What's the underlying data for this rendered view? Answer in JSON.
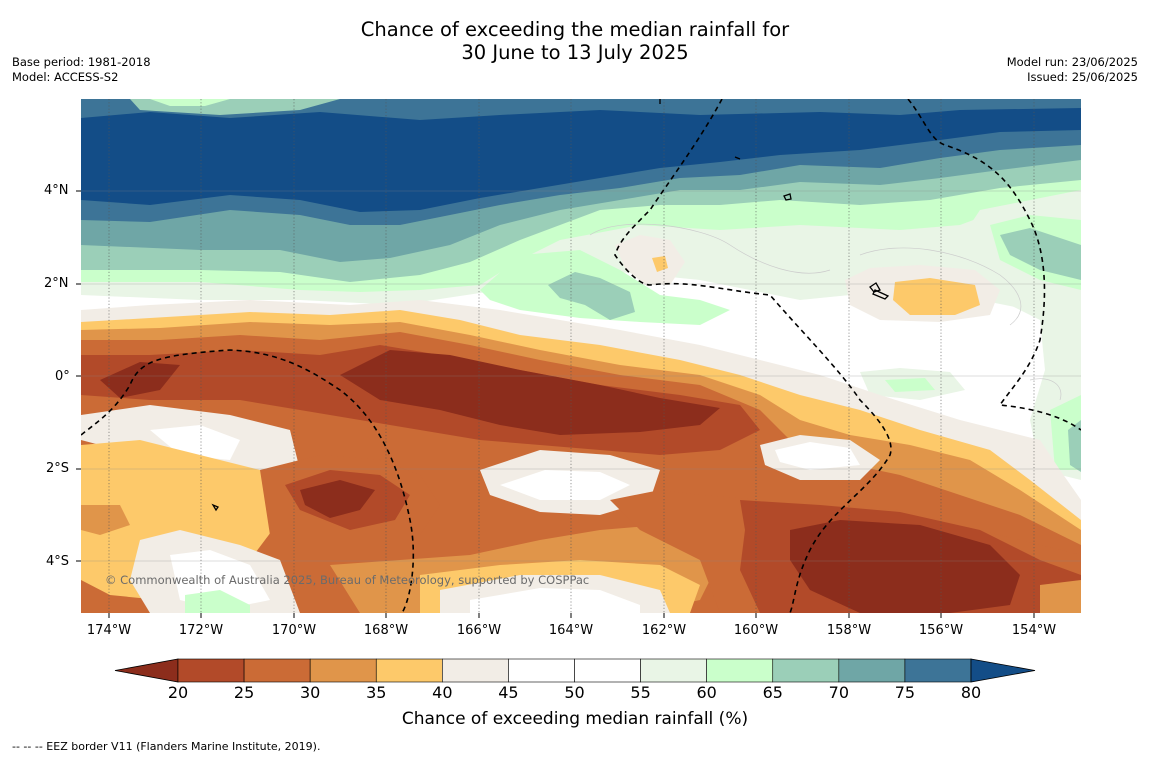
{
  "title_line1": "Chance of exceeding the median rainfall for",
  "title_line2": "30 June to 13 July 2025",
  "meta_left": [
    "Base period: 1981-2018",
    "Model: ACCESS-S2"
  ],
  "meta_right": [
    "Model run: 23/06/2025",
    "Issued: 25/06/2025"
  ],
  "copyright": "© Commonwealth of Australia 2025, Bureau of Meteorology, supported by COSPPac",
  "lat_labels": [
    "4°N",
    "2°N",
    "0°",
    "2°S",
    "4°S"
  ],
  "lon_labels": [
    "174°W",
    "172°W",
    "170°W",
    "168°W",
    "166°W",
    "164°W",
    "162°W",
    "160°W",
    "158°W",
    "156°W",
    "154°W"
  ],
  "colorbar": {
    "title": "Chance of exceeding median rainfall (%)",
    "ticks": [
      "20",
      "25",
      "30",
      "35",
      "40",
      "45",
      "50",
      "55",
      "60",
      "65",
      "70",
      "75",
      "80"
    ],
    "colors": [
      "#8c2d1c",
      "#b24a29",
      "#cb6b36",
      "#e0954a",
      "#fdc96a",
      "#f2ede6",
      "#ffffff",
      "#ffffff",
      "#e9f5e6",
      "#caffcb",
      "#9bcfb8",
      "#6fa6a6",
      "#3d7497",
      "#134d87"
    ]
  },
  "footnote": "--  --  -- EEZ border V11 (Flanders Marine Institute, 2019).",
  "map_colors": {
    "deep_blue": "#134d87",
    "blue": "#3d7497",
    "teal": "#6fa6a6",
    "seafoam": "#9bcfb8",
    "mint": "#caffcb",
    "pale_green": "#e9f5e6",
    "white": "#ffffff",
    "grey": "#f2ede6",
    "light_orange": "#fdc96a",
    "orange": "#e0954a",
    "dark_orange": "#cb6b36",
    "rust": "#b24a29",
    "brown": "#8c2d1c"
  }
}
